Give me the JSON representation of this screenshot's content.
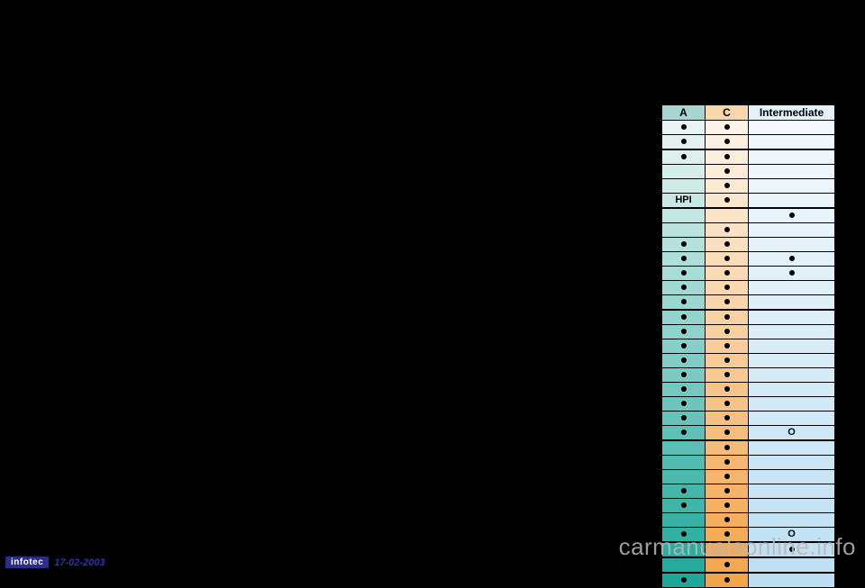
{
  "table": {
    "headers": {
      "a": "A",
      "c": "C",
      "i": "Intermediate"
    },
    "header_colors": {
      "a": "#a7d6d1",
      "c": "#f7d6ab",
      "i": "#e5f1f9"
    },
    "col_gradients": {
      "a": {
        "top": "#e9f5f4",
        "bottom": "#1fa79a"
      },
      "c": {
        "top": "#fdf3e6",
        "bottom": "#f2a44b"
      },
      "i": {
        "top": "#f3f9fd",
        "bottom": "#bcdff3"
      }
    },
    "rows": [
      {
        "a": "●",
        "c": "●",
        "i": ""
      },
      {
        "a": "●",
        "c": "●",
        "i": ""
      },
      {
        "a": "●",
        "c": "●",
        "i": "",
        "sep": true
      },
      {
        "a": "",
        "c": "●",
        "i": ""
      },
      {
        "a": "",
        "c": "●",
        "i": ""
      },
      {
        "a": "HPI",
        "c": "●",
        "i": ""
      },
      {
        "a": "",
        "c": "",
        "i": "●",
        "sep": true
      },
      {
        "a": "",
        "c": "●",
        "i": ""
      },
      {
        "a": "●",
        "c": "●",
        "i": ""
      },
      {
        "a": "●",
        "c": "●",
        "i": "●"
      },
      {
        "a": "●",
        "c": "●",
        "i": "●"
      },
      {
        "a": "●",
        "c": "●",
        "i": ""
      },
      {
        "a": "●",
        "c": "●",
        "i": ""
      },
      {
        "a": "●",
        "c": "●",
        "i": "",
        "sep": true
      },
      {
        "a": "●",
        "c": "●",
        "i": ""
      },
      {
        "a": "●",
        "c": "●",
        "i": ""
      },
      {
        "a": "●",
        "c": "●",
        "i": ""
      },
      {
        "a": "●",
        "c": "●",
        "i": ""
      },
      {
        "a": "●",
        "c": "●",
        "i": ""
      },
      {
        "a": "●",
        "c": "●",
        "i": ""
      },
      {
        "a": "●",
        "c": "●",
        "i": ""
      },
      {
        "a": "●",
        "c": "●",
        "i": "O"
      },
      {
        "a": "",
        "c": "●",
        "i": "",
        "sep": true
      },
      {
        "a": "",
        "c": "●",
        "i": ""
      },
      {
        "a": "",
        "c": "●",
        "i": ""
      },
      {
        "a": "●",
        "c": "●",
        "i": ""
      },
      {
        "a": "●",
        "c": "●",
        "i": ""
      },
      {
        "a": "",
        "c": "●",
        "i": ""
      },
      {
        "a": "●",
        "c": "●",
        "i": "O"
      },
      {
        "a": "",
        "c": "",
        "i": "●",
        "sep": true
      },
      {
        "a": "",
        "c": "●",
        "i": "",
        "sep": true
      },
      {
        "a": "●",
        "c": "●",
        "i": "",
        "sep": true
      }
    ]
  },
  "footer": {
    "badge": "infotec",
    "date": "17-02-2003"
  },
  "watermark": "carmanualsonline.info"
}
